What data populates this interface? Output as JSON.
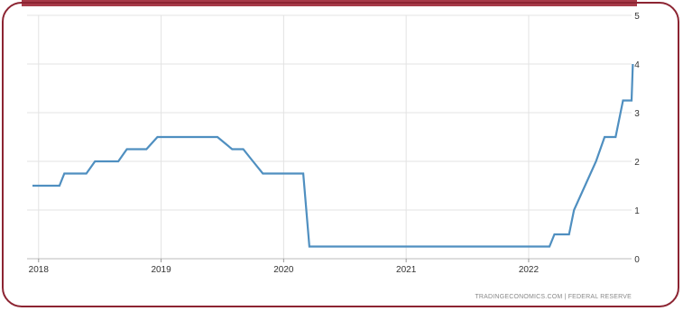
{
  "chart_data": {
    "type": "line",
    "title": "",
    "xlabel": "",
    "ylabel": "",
    "x_ticks": [
      "2018",
      "2019",
      "2020",
      "2021",
      "2022"
    ],
    "y_ticks": [
      "0",
      "1",
      "2",
      "3",
      "4",
      "5"
    ],
    "ylim": [
      0,
      5
    ],
    "xlim": [
      2017.95,
      2022.84
    ],
    "y_axis_position": "right",
    "grid": true,
    "line_color": "#4f8fc0",
    "series": [
      {
        "x": [
          2017.95,
          2018.17,
          2018.21,
          2018.39,
          2018.46,
          2018.65,
          2018.72,
          2018.88,
          2018.97,
          2019.46,
          2019.58,
          2019.67,
          2019.75,
          2019.83,
          2020.16,
          2020.21,
          2021.0,
          2022.17,
          2022.21,
          2022.33,
          2022.37,
          2022.46,
          2022.55,
          2022.62,
          2022.71,
          2022.77,
          2022.84,
          2022.85
        ],
        "y": [
          1.5,
          1.5,
          1.75,
          1.75,
          2.0,
          2.0,
          2.25,
          2.25,
          2.5,
          2.5,
          2.25,
          2.25,
          2.0,
          1.75,
          1.75,
          0.25,
          0.25,
          0.25,
          0.5,
          0.5,
          1.0,
          1.5,
          2.0,
          2.5,
          2.5,
          3.25,
          3.25,
          4.0
        ]
      }
    ]
  },
  "source_text": "TRADINGECONOMICS.COM  |  FEDERAL RESERVE",
  "colors": {
    "frame": "#8c2432",
    "topbar": "#a63a48",
    "grid": "#e3e3e3"
  }
}
